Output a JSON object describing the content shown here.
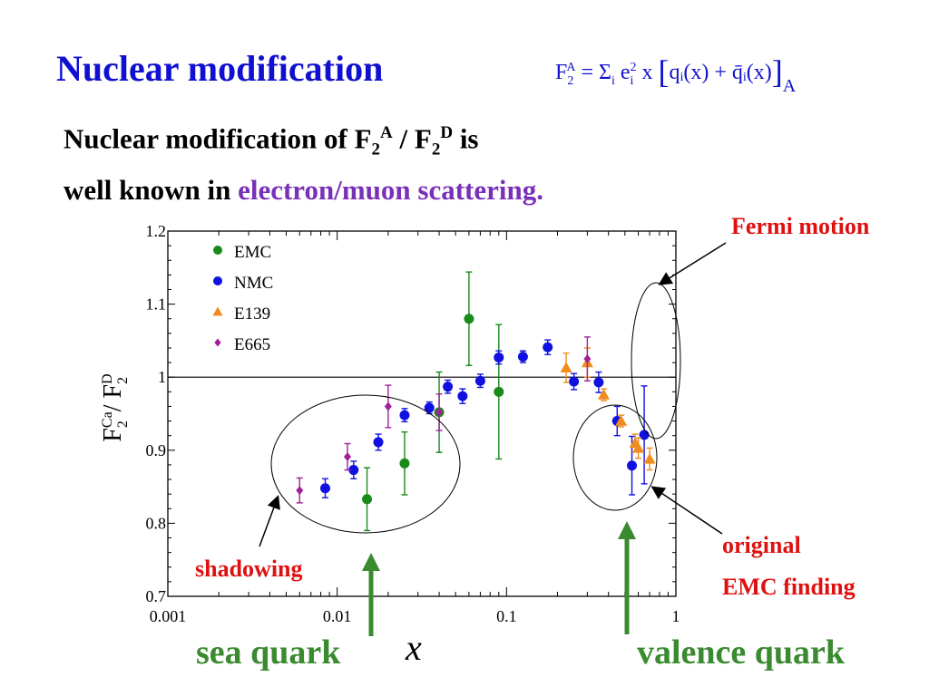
{
  "header": {
    "title": "Nuclear modification",
    "formula": {
      "lhs_main": "F",
      "lhs_sub": "2",
      "lhs_sup": "A",
      "equals": " = ",
      "sum": "Σ",
      "sum_index": "i",
      "e": " e",
      "e_sub": "i",
      "e_sup": "2",
      "x": " x ",
      "inner": "qᵢ(x) + q̄ᵢ(x)",
      "rhs_sub": "A"
    }
  },
  "subtitle": {
    "line1_a": "Nuclear modification of F",
    "line1_sub1": "2",
    "line1_sup1": "A",
    "line1_slash": " / F",
    "line1_sub2": "2",
    "line1_sup2": "D",
    "line1_b": " is",
    "line2_a": "well known in ",
    "line2_accent": "electron/muon scattering."
  },
  "annotations": {
    "fermi_motion": "Fermi motion",
    "shadowing": "shadowing",
    "original_line1": "original",
    "original_line2": "EMC finding",
    "sea_quark": "sea quark",
    "valence_quark": "valence quark"
  },
  "colors": {
    "title_blue": "#1010d0",
    "accent_purple": "#7a2fb8",
    "annotation_red": "#e01010",
    "annotation_green": "#3a8a30",
    "EMC": "#1a8a1a",
    "NMC": "#1010e0",
    "E139": "#f08c1e",
    "E665": "#a0209a"
  },
  "chart_data": {
    "type": "scatter",
    "xlabel": "x",
    "ylabel_main": "F",
    "ylabel_sub1": "2",
    "ylabel_sup1": "Ca",
    "ylabel_slash": "/ F",
    "ylabel_sub2": "2",
    "ylabel_sup2": "D",
    "xscale": "log",
    "xlim": [
      0.001,
      1
    ],
    "ylim": [
      0.7,
      1.2
    ],
    "xticks": [
      0.001,
      0.01,
      0.1,
      1
    ],
    "xtick_labels": [
      "0.001",
      "0.01",
      "0.1",
      "1"
    ],
    "yticks": [
      0.7,
      0.8,
      0.9,
      1.0,
      1.1,
      1.2
    ],
    "ytick_labels": [
      "0.7",
      "0.8",
      "0.9",
      "1",
      "1.1",
      "1.2"
    ],
    "reference_line": 1.0,
    "legend_position": "top-left",
    "series": [
      {
        "name": "EMC",
        "marker": "circle",
        "points": [
          {
            "x": 0.015,
            "y": 0.833,
            "err": 0.043
          },
          {
            "x": 0.025,
            "y": 0.882,
            "err": 0.043
          },
          {
            "x": 0.04,
            "y": 0.952,
            "err": 0.055
          },
          {
            "x": 0.06,
            "y": 1.08,
            "err": 0.064
          },
          {
            "x": 0.09,
            "y": 0.98,
            "err": 0.092
          }
        ]
      },
      {
        "name": "NMC",
        "marker": "circle",
        "points": [
          {
            "x": 0.0085,
            "y": 0.848,
            "err": 0.013
          },
          {
            "x": 0.0125,
            "y": 0.873,
            "err": 0.012
          },
          {
            "x": 0.0175,
            "y": 0.911,
            "err": 0.011
          },
          {
            "x": 0.025,
            "y": 0.948,
            "err": 0.009
          },
          {
            "x": 0.035,
            "y": 0.958,
            "err": 0.008
          },
          {
            "x": 0.045,
            "y": 0.987,
            "err": 0.009
          },
          {
            "x": 0.055,
            "y": 0.974,
            "err": 0.01
          },
          {
            "x": 0.07,
            "y": 0.995,
            "err": 0.009
          },
          {
            "x": 0.09,
            "y": 1.027,
            "err": 0.009
          },
          {
            "x": 0.125,
            "y": 1.028,
            "err": 0.008
          },
          {
            "x": 0.175,
            "y": 1.041,
            "err": 0.01
          },
          {
            "x": 0.25,
            "y": 0.994,
            "err": 0.011
          },
          {
            "x": 0.35,
            "y": 0.993,
            "err": 0.014
          },
          {
            "x": 0.45,
            "y": 0.94,
            "err": 0.02
          },
          {
            "x": 0.55,
            "y": 0.879,
            "err": 0.04
          },
          {
            "x": 0.65,
            "y": 0.921,
            "err": 0.067
          }
        ]
      },
      {
        "name": "E139",
        "marker": "triangle",
        "points": [
          {
            "x": 0.225,
            "y": 1.013,
            "err": 0.02
          },
          {
            "x": 0.3,
            "y": 1.02,
            "err": 0.02
          },
          {
            "x": 0.375,
            "y": 0.976,
            "err": 0.008
          },
          {
            "x": 0.475,
            "y": 0.94,
            "err": 0.008
          },
          {
            "x": 0.575,
            "y": 0.91,
            "err": 0.012
          },
          {
            "x": 0.6,
            "y": 0.903,
            "err": 0.014
          },
          {
            "x": 0.7,
            "y": 0.888,
            "err": 0.015
          }
        ]
      },
      {
        "name": "E665",
        "marker": "diamond",
        "points": [
          {
            "x": 0.006,
            "y": 0.845,
            "err": 0.017
          },
          {
            "x": 0.0115,
            "y": 0.891,
            "err": 0.018
          },
          {
            "x": 0.02,
            "y": 0.96,
            "err": 0.029
          },
          {
            "x": 0.04,
            "y": 0.952,
            "err": 0.025
          },
          {
            "x": 0.3,
            "y": 1.025,
            "err": 0.03
          }
        ]
      }
    ]
  }
}
